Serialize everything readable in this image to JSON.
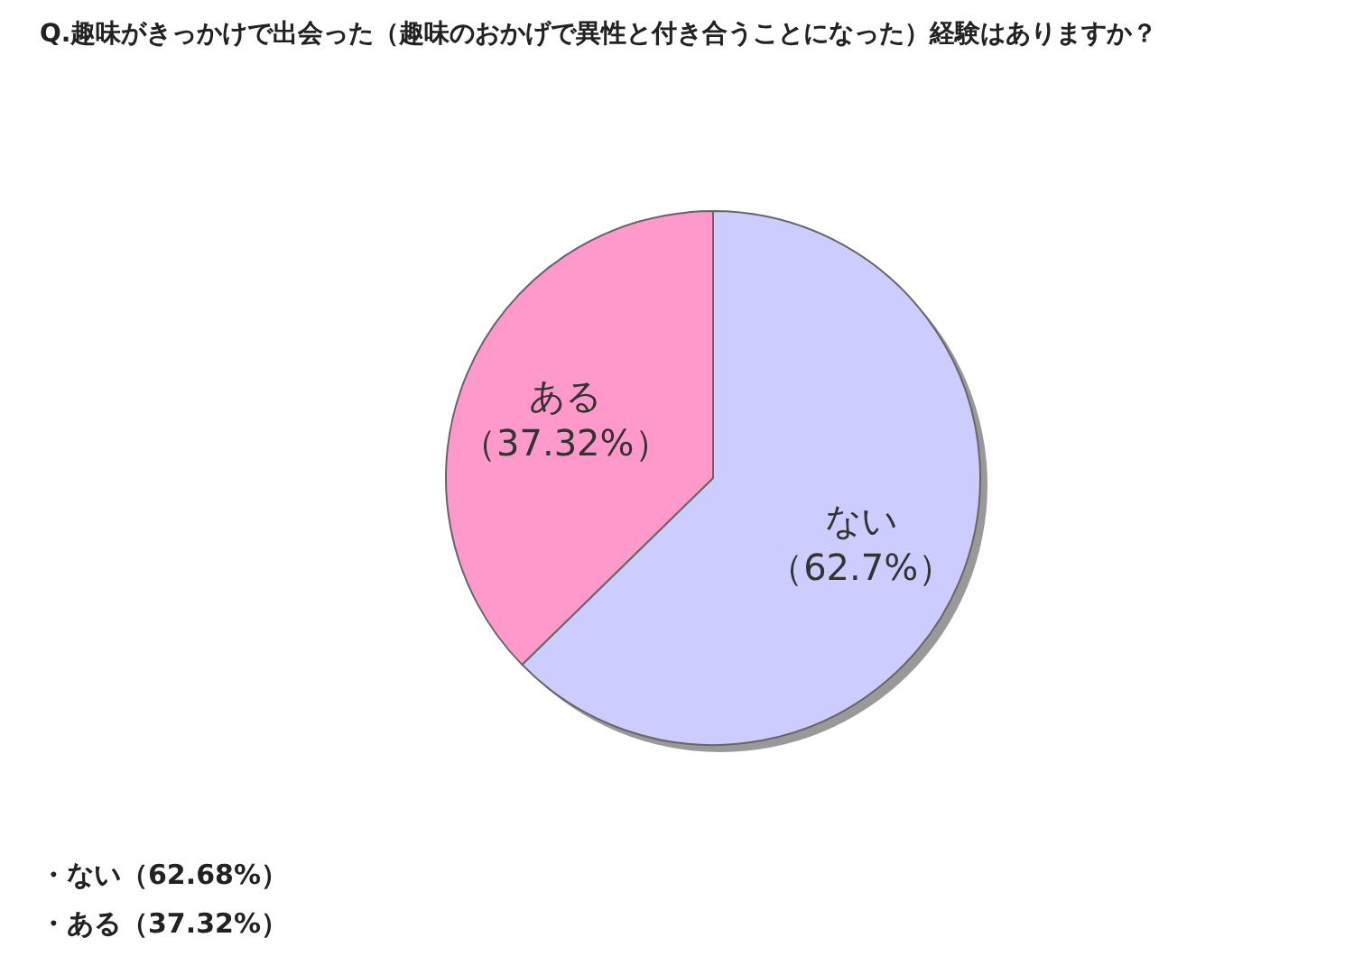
{
  "chart_data": {
    "type": "pie",
    "title": "Q.趣味がきっかけで出会った（趣味のおかげで異性と付き合うことになった）経験はありますか？",
    "categories": [
      "ない",
      "ある"
    ],
    "values": [
      62.68,
      37.32
    ],
    "colors": [
      "#ccccff",
      "#ff99cc"
    ],
    "value_labels": [
      "（62.7%）",
      "（37.32%）"
    ],
    "annotations": [
      "・ない（62.68%）",
      "・ある（37.32%）"
    ]
  }
}
